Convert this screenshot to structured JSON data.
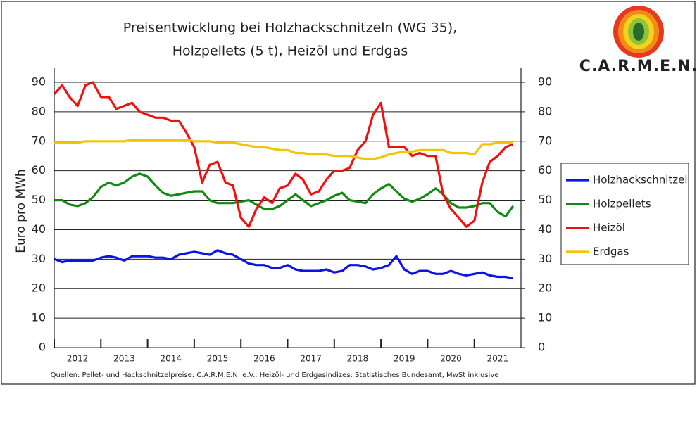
{
  "chart_data": {
    "type": "line",
    "title": "Preisentwicklung bei Holzhackschnitzeln (WG 35),",
    "subtitle": "Holzpellets (5 t), Heizöl und Erdgas",
    "y_label": "Euro pro MWh",
    "source": "Quellen: Pellet- und Hackschnitzelpreise: C.A.R.M.E.N. e.V.; Heizöl- und Erdgasindizes: Statistisches Bundesamt, MwSt inklusive",
    "logo": "C.A.R.M.E.N.",
    "x": [
      2012,
      2012.17,
      2012.33,
      2012.5,
      2012.67,
      2012.83,
      2013,
      2013.17,
      2013.33,
      2013.5,
      2013.67,
      2013.83,
      2014,
      2014.17,
      2014.33,
      2014.5,
      2014.67,
      2014.83,
      2015,
      2015.17,
      2015.33,
      2015.5,
      2015.67,
      2015.83,
      2016,
      2016.17,
      2016.33,
      2016.5,
      2016.67,
      2016.83,
      2017,
      2017.17,
      2017.33,
      2017.5,
      2017.67,
      2017.83,
      2018,
      2018.17,
      2018.33,
      2018.5,
      2018.67,
      2018.83,
      2019,
      2019.17,
      2019.33,
      2019.5,
      2019.67,
      2019.83,
      2020,
      2020.17,
      2020.33,
      2020.5,
      2020.67,
      2020.83,
      2021,
      2021.17,
      2021.33,
      2021.5,
      2021.67,
      2021.83
    ],
    "xlim": [
      2012,
      2022
    ],
    "xticks": [
      2012,
      2013,
      2014,
      2015,
      2016,
      2017,
      2018,
      2019,
      2020,
      2021
    ],
    "ylim": [
      0,
      90
    ],
    "yticks": [
      0,
      10,
      20,
      30,
      40,
      50,
      60,
      70,
      80,
      90
    ],
    "y2lim": [
      0,
      90
    ],
    "y2ticks": [
      0,
      10,
      20,
      30,
      40,
      50,
      60,
      70,
      80,
      90
    ],
    "grid": true,
    "legend": "right",
    "series": [
      {
        "name": "Holzhackschnitzel",
        "color": "#0a14e6",
        "values": [
          30,
          29,
          29.5,
          29.5,
          29.5,
          29.5,
          30.5,
          31,
          30.5,
          29.5,
          31,
          31,
          31,
          30.5,
          30.5,
          30,
          31.5,
          32,
          32.5,
          32,
          31.5,
          33,
          32,
          31.5,
          30,
          28.5,
          28,
          28,
          27,
          27,
          28,
          26.5,
          26,
          26,
          26,
          26.5,
          25.5,
          26,
          28,
          28,
          27.5,
          26.5,
          27,
          28,
          31,
          26.5,
          25,
          26,
          26,
          25,
          25,
          26,
          25,
          24.5,
          25,
          25.5,
          24.5,
          24,
          24,
          23.5
        ]
      },
      {
        "name": "Holzpellets",
        "color": "#108a10",
        "values": [
          50,
          50,
          48.5,
          48,
          49,
          51,
          54.5,
          56,
          55,
          56,
          58,
          59,
          58,
          55,
          52.5,
          51.5,
          52,
          52.5,
          53,
          53,
          50,
          49,
          49,
          49,
          49.5,
          50,
          48.5,
          47,
          47,
          48,
          50,
          52,
          50,
          48,
          49,
          50,
          51.5,
          52.5,
          50,
          49.5,
          49,
          52,
          54,
          55.5,
          53,
          50.5,
          49.5,
          50.5,
          52,
          54,
          52,
          49,
          47.5,
          47.5,
          48,
          49,
          49,
          46,
          44.5,
          48
        ]
      },
      {
        "name": "Heizöl",
        "color": "#ee1111",
        "values": [
          86,
          89,
          85,
          82,
          89,
          90,
          85,
          85,
          81,
          82,
          83,
          80,
          79,
          78,
          78,
          77,
          77,
          73,
          68,
          56,
          62,
          63,
          56,
          55,
          44,
          41,
          47,
          51,
          49,
          54,
          55,
          59,
          57,
          52,
          53,
          57,
          60,
          60,
          61,
          67,
          70,
          79,
          83,
          68,
          68,
          68,
          65,
          66,
          65,
          65,
          52,
          47,
          44,
          41,
          43,
          56,
          63,
          65,
          68,
          69
        ]
      },
      {
        "name": "Erdgas",
        "color": "#f5c400",
        "values": [
          69.5,
          69.5,
          69.5,
          69.5,
          70,
          70,
          70,
          70,
          70,
          70,
          70.5,
          70.5,
          70.5,
          70.5,
          70.5,
          70.5,
          70.5,
          70.5,
          70,
          70,
          70,
          69.5,
          69.5,
          69.5,
          69,
          68.5,
          68,
          68,
          67.5,
          67,
          67,
          66,
          66,
          65.5,
          65.5,
          65.5,
          65,
          65,
          65,
          64.5,
          64,
          64,
          64.5,
          65.5,
          66,
          66.5,
          66.5,
          67,
          67,
          67,
          67,
          66,
          66,
          66,
          65.5,
          69,
          69,
          69.5,
          69.5,
          69.5
        ]
      }
    ]
  }
}
